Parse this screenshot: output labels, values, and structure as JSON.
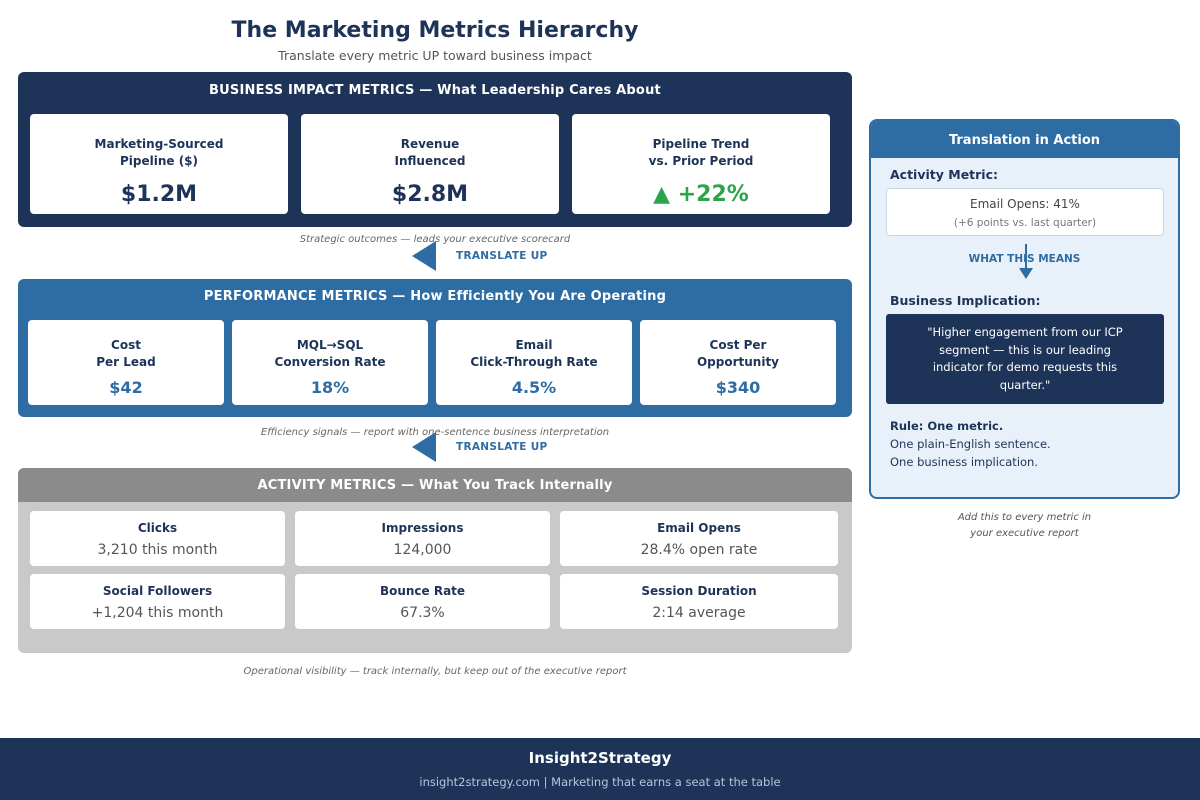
{
  "header": {
    "title": "The Marketing Metrics Hierarchy",
    "subtitle": "Translate every metric UP toward business impact"
  },
  "tiers": {
    "business": {
      "label": "BUSINESS IMPACT METRICS — What Leadership Cares About",
      "cards": [
        {
          "label": "Marketing-Sourced\nPipeline ($)",
          "value": "$1.2M"
        },
        {
          "label": "Revenue\nInfluenced",
          "value": "$2.8M"
        },
        {
          "label": "Pipeline Trend\nvs. Prior Period",
          "value": "▲ +22%",
          "trend": "up"
        }
      ],
      "caption": "Strategic outcomes — leads your executive scorecard"
    },
    "performance": {
      "label": "PERFORMANCE METRICS — How Efficiently You Are Operating",
      "cards": [
        {
          "label": "Cost\nPer Lead",
          "value": "$42"
        },
        {
          "label": "MQL→SQL\nConversion Rate",
          "value": "18%"
        },
        {
          "label": "Email\nClick-Through Rate",
          "value": "4.5%"
        },
        {
          "label": "Cost Per\nOpportunity",
          "value": "$340"
        }
      ],
      "caption": "Efficiency signals — report with one-sentence business interpretation"
    },
    "activity": {
      "label": "ACTIVITY METRICS — What You Track Internally",
      "cards": [
        {
          "label": "Clicks",
          "value": "3,210 this month"
        },
        {
          "label": "Impressions",
          "value": "124,000"
        },
        {
          "label": "Email Opens",
          "value": "28.4% open rate"
        },
        {
          "label": "Social Followers",
          "value": "+1,204 this month"
        },
        {
          "label": "Bounce Rate",
          "value": "67.3%"
        },
        {
          "label": "Session Duration",
          "value": "2:14 average"
        }
      ],
      "caption": "Operational visibility — track internally, but keep out of the executive report"
    }
  },
  "translate_label": "TRANSLATE UP",
  "panel": {
    "title": "Translation in Action",
    "activity_label": "Activity Metric:",
    "activity_value": "Email Opens: 41%",
    "activity_sub": "(+6 points vs. last quarter)",
    "means_label": "WHAT THIS MEANS",
    "implication_label": "Business Implication:",
    "quote": "\"Higher engagement from our ICP segment — this is our leading indicator for demo requests this quarter.\"",
    "rule_title": "Rule: One metric.",
    "rule_lines": [
      "One plain-English sentence.",
      "One business implication."
    ],
    "caption_lines": [
      "Add this to every metric in",
      "your executive report"
    ]
  },
  "footer": {
    "brand": "Insight2Strategy",
    "tagline": "insight2strategy.com | Marketing that earns a seat at the table"
  },
  "colors": {
    "navy": "#1e3358",
    "blue": "#2e6ca4",
    "gray": "#8b8b8b",
    "green": "#2ca44a"
  }
}
